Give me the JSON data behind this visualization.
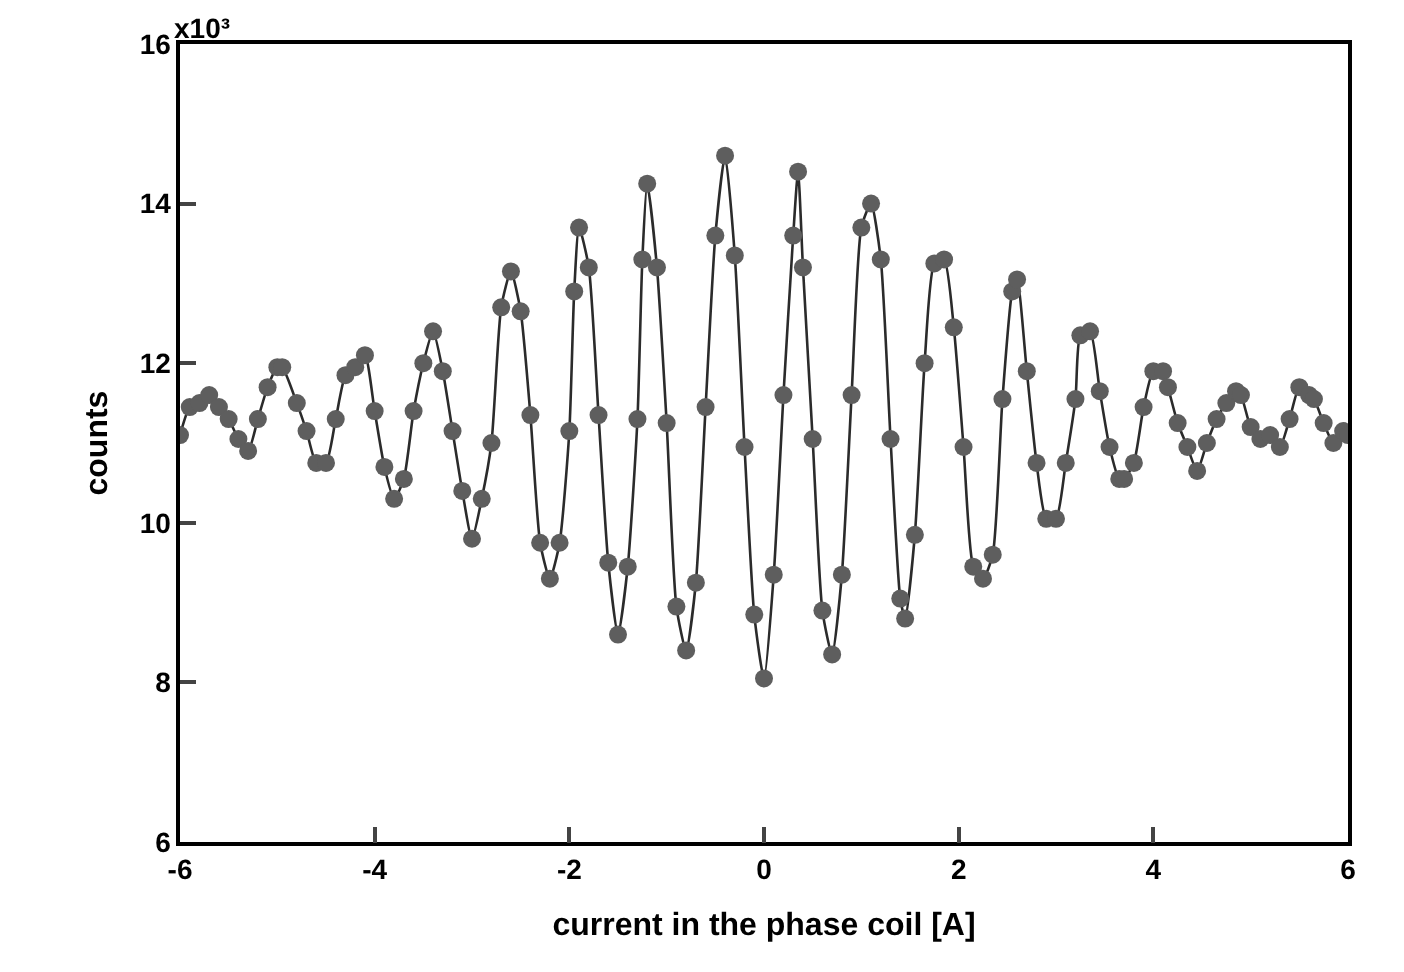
{
  "chart_data": {
    "type": "scatter",
    "xlabel": "current in the phase coil [A]",
    "ylabel": "counts",
    "annotations": [
      "x10³"
    ],
    "xlim": [
      -6,
      6
    ],
    "xticks": [
      -6,
      -4,
      -2,
      0,
      2,
      4,
      6
    ],
    "ylim": [
      6,
      16
    ],
    "yticks": [
      6,
      8,
      10,
      12,
      14,
      16
    ],
    "x": [
      -6.0,
      -5.9,
      -5.8,
      -5.7,
      -5.6,
      -5.5,
      -5.4,
      -5.3,
      -5.2,
      -5.1,
      -5.0,
      -4.95,
      -4.8,
      -4.7,
      -4.6,
      -4.5,
      -4.4,
      -4.3,
      -4.2,
      -4.1,
      -4.0,
      -3.9,
      -3.8,
      -3.7,
      -3.6,
      -3.5,
      -3.4,
      -3.3,
      -3.2,
      -3.1,
      -3.0,
      -2.9,
      -2.8,
      -2.7,
      -2.6,
      -2.5,
      -2.4,
      -2.3,
      -2.2,
      -2.1,
      -2.0,
      -1.95,
      -1.9,
      -1.8,
      -1.7,
      -1.6,
      -1.5,
      -1.4,
      -1.3,
      -1.25,
      -1.2,
      -1.1,
      -1.0,
      -0.9,
      -0.8,
      -0.7,
      -0.6,
      -0.5,
      -0.4,
      -0.3,
      -0.2,
      -0.1,
      0.0,
      0.1,
      0.2,
      0.3,
      0.35,
      0.4,
      0.5,
      0.6,
      0.7,
      0.8,
      0.9,
      1.0,
      1.1,
      1.2,
      1.3,
      1.4,
      1.45,
      1.55,
      1.65,
      1.75,
      1.85,
      1.95,
      2.05,
      2.15,
      2.25,
      2.35,
      2.45,
      2.55,
      2.6,
      2.7,
      2.8,
      2.9,
      3.0,
      3.1,
      3.2,
      3.25,
      3.35,
      3.45,
      3.55,
      3.65,
      3.7,
      3.8,
      3.9,
      4.0,
      4.1,
      4.15,
      4.25,
      4.35,
      4.45,
      4.55,
      4.65,
      4.75,
      4.85,
      4.9,
      5.0,
      5.1,
      5.2,
      5.3,
      5.4,
      5.5,
      5.6,
      5.65,
      5.75,
      5.85,
      5.95,
      6.0
    ],
    "series": [
      {
        "color": "#5e5e5e",
        "marker": "circle",
        "values": [
          11.1,
          11.45,
          11.5,
          11.6,
          11.45,
          11.3,
          11.05,
          10.9,
          11.3,
          11.7,
          11.95,
          11.95,
          11.5,
          11.15,
          10.75,
          10.75,
          11.3,
          11.85,
          11.95,
          12.1,
          11.4,
          10.7,
          10.3,
          10.55,
          11.4,
          12.0,
          12.4,
          11.9,
          11.15,
          10.4,
          9.8,
          10.3,
          11.0,
          12.7,
          13.15,
          12.65,
          11.35,
          9.75,
          9.3,
          9.75,
          11.15,
          12.9,
          13.7,
          13.2,
          11.35,
          9.5,
          8.6,
          9.45,
          11.3,
          13.3,
          14.25,
          13.2,
          11.25,
          8.95,
          8.4,
          9.25,
          11.45,
          13.6,
          14.6,
          13.35,
          10.95,
          8.85,
          8.05,
          9.35,
          11.6,
          13.6,
          14.4,
          13.2,
          11.05,
          8.9,
          8.35,
          9.35,
          11.6,
          13.7,
          14.0,
          13.3,
          11.05,
          9.05,
          8.8,
          9.85,
          12.0,
          13.25,
          13.3,
          12.45,
          10.95,
          9.45,
          9.3,
          9.6,
          11.55,
          12.9,
          13.05,
          11.9,
          10.75,
          10.05,
          10.05,
          10.75,
          11.55,
          12.35,
          12.4,
          11.65,
          10.95,
          10.55,
          10.55,
          10.75,
          11.45,
          11.9,
          11.9,
          11.7,
          11.25,
          10.95,
          10.65,
          11.0,
          11.3,
          11.5,
          11.65,
          11.6,
          11.2,
          11.05,
          11.1,
          10.95,
          11.3,
          11.7,
          11.6,
          11.55,
          11.25,
          11.0,
          11.15,
          11.1
        ]
      },
      {
        "type": "line",
        "color": "#2b2b2b",
        "line_style": "solid",
        "values": [
          11.1,
          11.45,
          11.5,
          11.6,
          11.45,
          11.3,
          11.05,
          10.9,
          11.3,
          11.7,
          11.95,
          11.95,
          11.5,
          11.15,
          10.75,
          10.75,
          11.3,
          11.85,
          11.95,
          12.1,
          11.4,
          10.7,
          10.3,
          10.55,
          11.4,
          12.0,
          12.4,
          11.9,
          11.15,
          10.4,
          9.8,
          10.3,
          11.0,
          12.7,
          13.15,
          12.65,
          11.35,
          9.75,
          9.3,
          9.75,
          11.15,
          12.9,
          13.7,
          13.2,
          11.35,
          9.5,
          8.6,
          9.45,
          11.3,
          13.3,
          14.25,
          13.2,
          11.25,
          8.95,
          8.4,
          9.25,
          11.45,
          13.6,
          14.6,
          13.35,
          10.95,
          8.85,
          8.05,
          9.35,
          11.6,
          13.6,
          14.4,
          13.2,
          11.05,
          8.9,
          8.35,
          9.35,
          11.6,
          13.7,
          14.0,
          13.3,
          11.05,
          9.05,
          8.8,
          9.85,
          12.0,
          13.25,
          13.3,
          12.45,
          10.95,
          9.45,
          9.3,
          9.6,
          11.55,
          12.9,
          13.05,
          11.9,
          10.75,
          10.05,
          10.05,
          10.75,
          11.55,
          12.35,
          12.4,
          11.65,
          10.95,
          10.55,
          10.55,
          10.75,
          11.45,
          11.9,
          11.9,
          11.7,
          11.25,
          10.95,
          10.65,
          11.0,
          11.3,
          11.5,
          11.65,
          11.6,
          11.2,
          11.05,
          11.1,
          10.95,
          11.3,
          11.7,
          11.6,
          11.55,
          11.25,
          11.0,
          11.15,
          11.1
        ]
      }
    ]
  }
}
